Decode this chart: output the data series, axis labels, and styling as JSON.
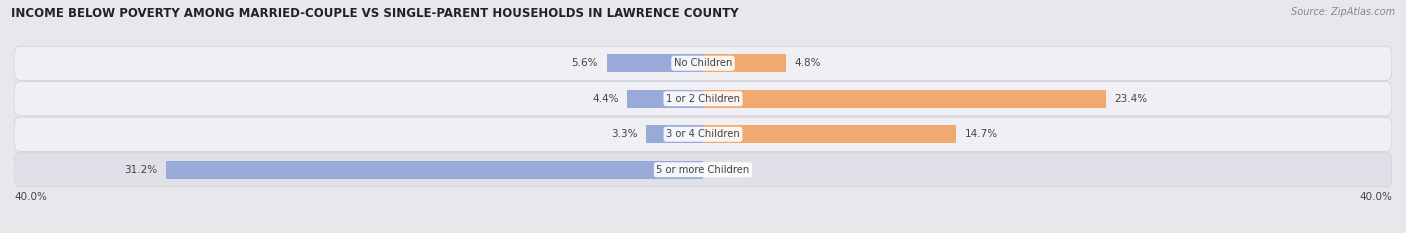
{
  "title": "INCOME BELOW POVERTY AMONG MARRIED-COUPLE VS SINGLE-PARENT HOUSEHOLDS IN LAWRENCE COUNTY",
  "source": "Source: ZipAtlas.com",
  "categories": [
    "No Children",
    "1 or 2 Children",
    "3 or 4 Children",
    "5 or more Children"
  ],
  "married_values": [
    5.6,
    4.4,
    3.3,
    31.2
  ],
  "single_values": [
    4.8,
    23.4,
    14.7,
    0.0
  ],
  "married_color": "#9aaad8",
  "single_color": "#f0a96e",
  "axis_max": 40.0,
  "axis_label_left": "40.0%",
  "axis_label_right": "40.0%",
  "bar_height": 0.52,
  "background_color": "#e8e8ec",
  "row_bg_colors": [
    "#f0f0f4",
    "#f0f0f4",
    "#f0f0f4",
    "#e0e0e8"
  ],
  "row_border_color": "#ccccdd",
  "label_color": "#444444",
  "title_fontsize": 8.5,
  "source_fontsize": 7,
  "bar_label_fontsize": 7.5,
  "category_fontsize": 7.2,
  "legend_fontsize": 7.5,
  "axis_label_fontsize": 7.5
}
